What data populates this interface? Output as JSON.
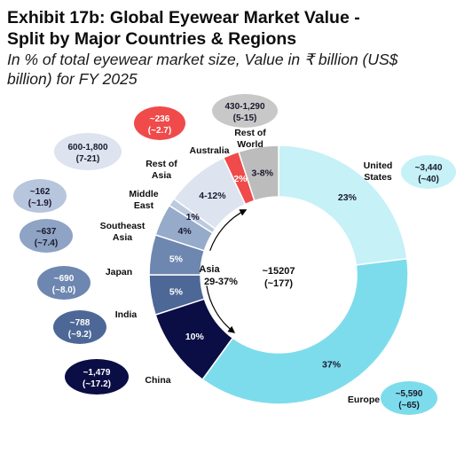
{
  "header": {
    "title_line1": "Exhibit 17b: Global Eyewear Market Value -",
    "title_line2": "Split by Major Countries & Regions",
    "subtitle_line1": "In % of total eyewear market size, Value in ₹ billion (US$",
    "subtitle_line2": "billion) for FY 2025"
  },
  "chart_data": {
    "type": "pie",
    "title": "Exhibit 17b: Global Eyewear Market Value - Split by Major Countries & Regions",
    "subtitle": "In % of total eyewear market size, Value in ₹ billion (US$ billion) for FY 2025",
    "center": {
      "value_inr": "~15207",
      "value_usd": "(~177)"
    },
    "asia_group": {
      "label": "Asia",
      "share": "29-37%"
    },
    "segments": [
      {
        "name": "United States",
        "share_label": "23%",
        "share": 23,
        "value_inr": "~3,440",
        "value_usd": "(~40)",
        "color": "#c5f1f7",
        "bubble_color": "#c5f1f7"
      },
      {
        "name": "Europe",
        "share_label": "37%",
        "share": 37,
        "value_inr": "~5,590",
        "value_usd": "(~65)",
        "color": "#7ddcec",
        "bubble_color": "#7ddcec"
      },
      {
        "name": "China",
        "share_label": "10%",
        "share": 10,
        "value_inr": "~1,479",
        "value_usd": "(~17.2)",
        "color": "#0b0d45",
        "bubble_color": "#0b0d45"
      },
      {
        "name": "India",
        "share_label": "5%",
        "share": 5,
        "value_inr": "~788",
        "value_usd": "(~9.2)",
        "color": "#4d6896",
        "bubble_color": "#4d6896"
      },
      {
        "name": "Japan",
        "share_label": "5%",
        "share": 5,
        "value_inr": "~690",
        "value_usd": "(~8.0)",
        "color": "#6e87b0",
        "bubble_color": "#6e87b0"
      },
      {
        "name": "Southeast Asia",
        "share_label": "4%",
        "share": 4,
        "value_inr": "~637",
        "value_usd": "(~7.4)",
        "color": "#96aac9",
        "bubble_color": "#8fa3c4"
      },
      {
        "name": "Middle East",
        "share_label": "1%",
        "share": 1,
        "value_inr": "~162",
        "value_usd": "(~1.9)",
        "color": "#bccae0",
        "bubble_color": "#b7c5dd"
      },
      {
        "name": "Rest of Asia",
        "share_label": "4-12%",
        "share": 8,
        "value_inr": "600-1,800",
        "value_usd": "(7-21)",
        "color": "#dde4f0",
        "bubble_color": "#dde3ef"
      },
      {
        "name": "Australia",
        "share_label": "2%",
        "share": 2,
        "value_inr": "~236",
        "value_usd": "(~2.7)",
        "color": "#f04a4a",
        "bubble_color": "#f04a4a"
      },
      {
        "name": "Rest of World",
        "share_label": "3-8%",
        "share": 5,
        "value_inr": "430-1,290",
        "value_usd": "(5-15)",
        "color": "#bcbcbc",
        "bubble_color": "#c8c8c8"
      }
    ]
  }
}
